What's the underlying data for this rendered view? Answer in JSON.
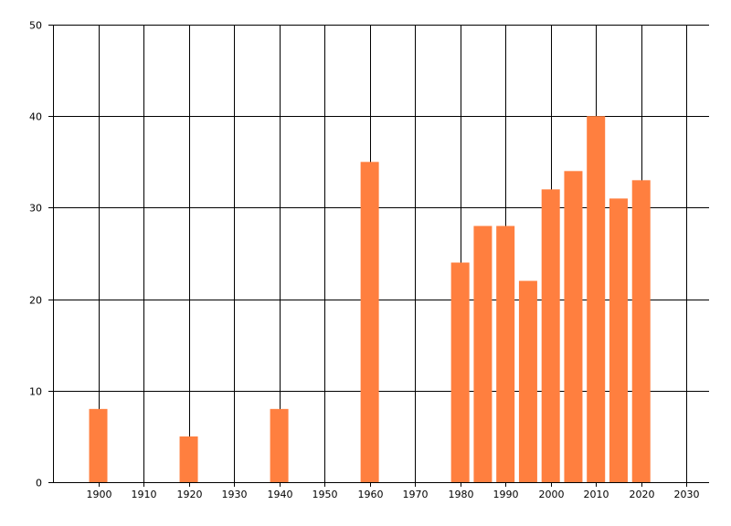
{
  "chart_data": {
    "type": "bar",
    "x": [
      1900,
      1920,
      1940,
      1960,
      1980,
      1985,
      1990,
      1995,
      2000,
      2005,
      2010,
      2015,
      2020
    ],
    "values": [
      8,
      5,
      8,
      35,
      24,
      28,
      28,
      22,
      32,
      34,
      40,
      31,
      33
    ],
    "title": "",
    "xlabel": "",
    "ylabel": "",
    "xlim": [
      1890,
      2035
    ],
    "ylim": [
      0,
      50
    ],
    "x_ticks": [
      1900,
      1910,
      1920,
      1930,
      1940,
      1950,
      1960,
      1970,
      1980,
      1990,
      2000,
      2010,
      2020,
      2030
    ],
    "y_ticks": [
      0,
      10,
      20,
      30,
      40,
      50
    ],
    "grid": true,
    "legend": "none",
    "bar_color": "#ff7f3f",
    "grid_color": "#000000"
  }
}
